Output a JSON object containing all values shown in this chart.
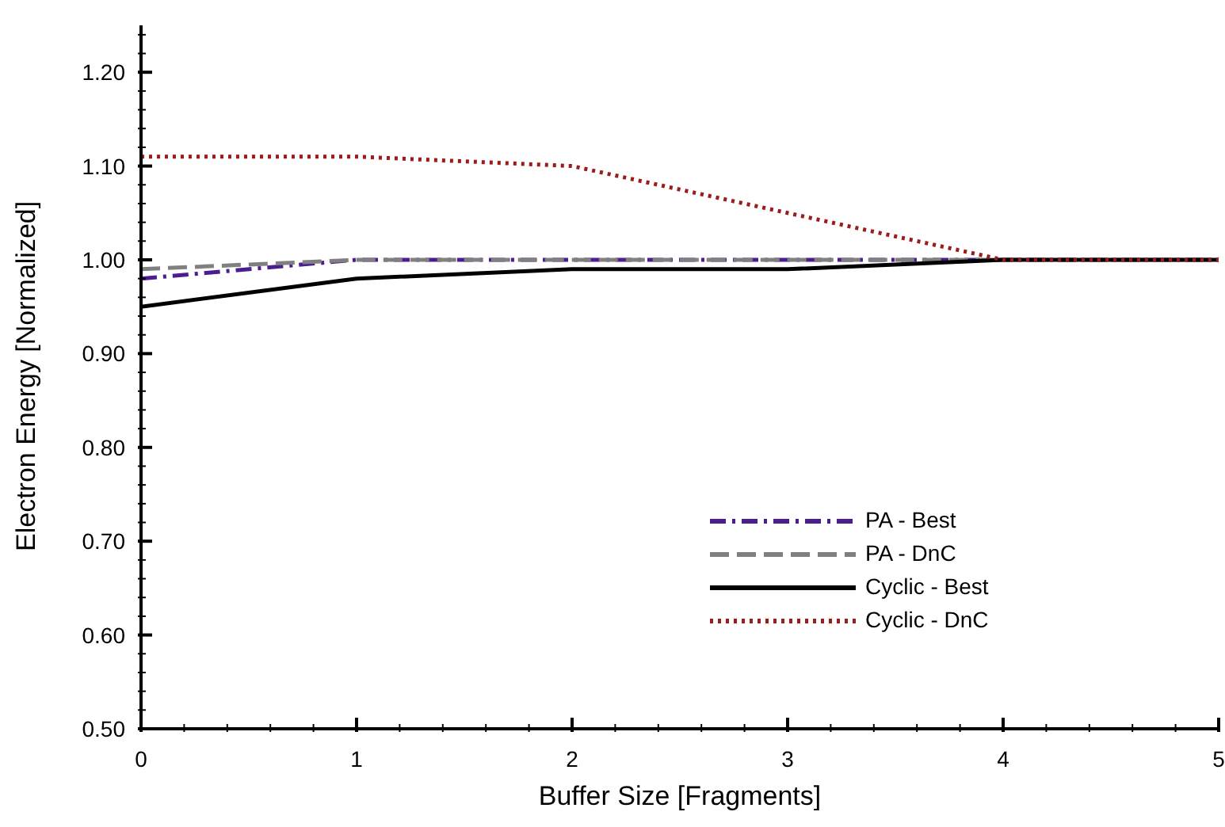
{
  "chart_data": {
    "type": "line",
    "xlabel": "Buffer Size [Fragments]",
    "ylabel": "Electron Energy [Normalized]",
    "x": [
      0,
      1,
      2,
      3,
      4,
      5
    ],
    "series": [
      {
        "name": "PA - Best",
        "color": "#4b1d91",
        "line_style": "dashdot",
        "values": [
          0.98,
          1.0,
          1.0,
          1.0,
          1.0,
          1.0
        ]
      },
      {
        "name": "PA - DnC",
        "color": "#808080",
        "line_style": "dashed",
        "values": [
          0.99,
          1.0,
          1.0,
          1.0,
          1.0,
          1.0
        ]
      },
      {
        "name": "Cyclic - Best",
        "color": "#000000",
        "line_style": "solid",
        "values": [
          0.95,
          0.98,
          0.99,
          0.99,
          1.0,
          1.0
        ]
      },
      {
        "name": "Cyclic - DnC",
        "color": "#9b1c1c",
        "line_style": "dotted",
        "values": [
          1.11,
          1.11,
          1.1,
          1.05,
          1.0,
          1.0
        ]
      }
    ],
    "xlim": [
      0,
      5
    ],
    "xticks": [
      0,
      {
        "value": 0.2,
        "label": null
      },
      {
        "value": 0.4,
        "label": null
      },
      {
        "value": 0.6,
        "label": null
      },
      {
        "value": 0.8,
        "label": null
      },
      1,
      {
        "value": 1.2,
        "label": null
      },
      {
        "value": 1.4,
        "label": null
      },
      {
        "value": 1.6,
        "label": null
      },
      {
        "value": 1.8,
        "label": null
      },
      2,
      {
        "value": 2.2,
        "label": null
      },
      {
        "value": 2.4,
        "label": null
      },
      {
        "value": 2.6,
        "label": null
      },
      {
        "value": 2.8,
        "label": null
      },
      3,
      {
        "value": 3.2,
        "label": null
      },
      {
        "value": 3.4,
        "label": null
      },
      {
        "value": 3.6,
        "label": null
      },
      {
        "value": 3.8,
        "label": null
      },
      4,
      {
        "value": 4.2,
        "label": null
      },
      {
        "value": 4.4,
        "label": null
      },
      {
        "value": 4.6,
        "label": null
      },
      {
        "value": 4.8,
        "label": null
      },
      5
    ],
    "ylim": [
      0.5,
      1.25
    ],
    "yticks": [
      {
        "value": 0.5,
        "label": "0.50"
      },
      {
        "value": 0.52,
        "label": null
      },
      {
        "value": 0.54,
        "label": null
      },
      {
        "value": 0.56,
        "label": null
      },
      {
        "value": 0.58,
        "label": null
      },
      {
        "value": 0.6,
        "label": "0.60"
      },
      {
        "value": 0.62,
        "label": null
      },
      {
        "value": 0.64,
        "label": null
      },
      {
        "value": 0.66,
        "label": null
      },
      {
        "value": 0.68,
        "label": null
      },
      {
        "value": 0.7,
        "label": "0.70"
      },
      {
        "value": 0.72,
        "label": null
      },
      {
        "value": 0.74,
        "label": null
      },
      {
        "value": 0.76,
        "label": null
      },
      {
        "value": 0.78,
        "label": null
      },
      {
        "value": 0.8,
        "label": "0.80"
      },
      {
        "value": 0.82,
        "label": null
      },
      {
        "value": 0.84,
        "label": null
      },
      {
        "value": 0.86,
        "label": null
      },
      {
        "value": 0.88,
        "label": null
      },
      {
        "value": 0.9,
        "label": "0.90"
      },
      {
        "value": 0.92,
        "label": null
      },
      {
        "value": 0.94,
        "label": null
      },
      {
        "value": 0.96,
        "label": null
      },
      {
        "value": 0.98,
        "label": null
      },
      {
        "value": 1.0,
        "label": "1.00"
      },
      {
        "value": 1.02,
        "label": null
      },
      {
        "value": 1.04,
        "label": null
      },
      {
        "value": 1.06,
        "label": null
      },
      {
        "value": 1.08,
        "label": null
      },
      {
        "value": 1.1,
        "label": "1.10"
      },
      {
        "value": 1.12,
        "label": null
      },
      {
        "value": 1.14,
        "label": null
      },
      {
        "value": 1.16,
        "label": null
      },
      {
        "value": 1.18,
        "label": null
      },
      {
        "value": 1.2,
        "label": "1.20"
      },
      {
        "value": 1.22,
        "label": null
      },
      {
        "value": 1.24,
        "label": null
      }
    ],
    "grid": false,
    "legend": "bottom right",
    "marker": "none"
  }
}
